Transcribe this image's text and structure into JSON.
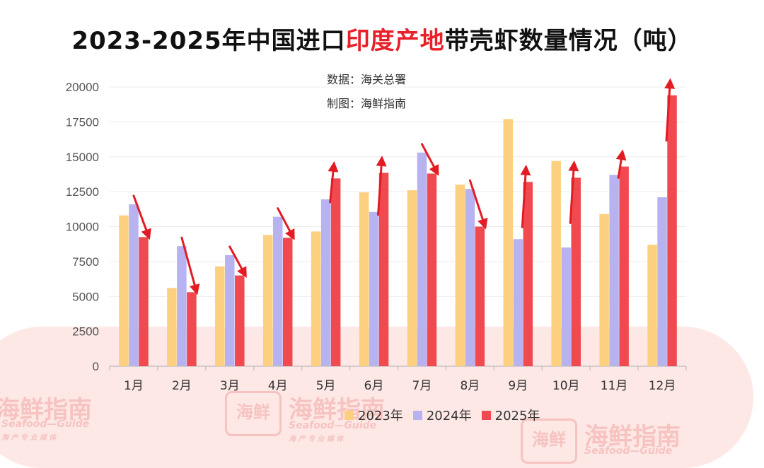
{
  "title": {
    "prefix": "2023-2025年中国进口",
    "highlight": "印度产地",
    "suffix": "带壳虾数量情况（吨）"
  },
  "source": {
    "data_line": "数据：海关总署",
    "chart_line": "制图：海鲜指南"
  },
  "watermark": {
    "brand_cn": "海鲜指南",
    "brand_en": "Seafood—Guide",
    "tagline": "海 产 专 业 媒 体",
    "logo_text": "海鲜"
  },
  "colors": {
    "s2023": "#fdd07f",
    "s2024": "#b8b2f1",
    "s2025": "#f04a50",
    "arrow": "#e31b23",
    "highlight": "#e8202a"
  },
  "chart_data": {
    "type": "bar",
    "title": "2023-2025年中国进口印度产地带壳虾数量情况（吨）",
    "xlabel": "",
    "ylabel": "",
    "ylim": [
      0,
      20000
    ],
    "yticks": [
      0,
      2500,
      5000,
      7500,
      10000,
      12500,
      15000,
      17500,
      20000
    ],
    "grid": true,
    "legend_position": "bottom",
    "categories": [
      "1月",
      "2月",
      "3月",
      "4月",
      "5月",
      "6月",
      "7月",
      "8月",
      "9月",
      "10月",
      "11月",
      "12月"
    ],
    "series": [
      {
        "name": "2023年",
        "values": [
          10800,
          5600,
          7150,
          9400,
          9650,
          12450,
          12600,
          13000,
          17700,
          14700,
          10900,
          8700
        ]
      },
      {
        "name": "2024年",
        "values": [
          11600,
          8600,
          7950,
          10700,
          11950,
          11050,
          15300,
          12700,
          9100,
          8500,
          13700,
          12100
        ]
      },
      {
        "name": "2025年",
        "values": [
          9250,
          5300,
          6500,
          9200,
          13450,
          13850,
          13800,
          10000,
          13200,
          13500,
          14300,
          19400
        ]
      }
    ],
    "annotations": "Red arrows mark the change from 2024 to 2025 for each month (up or down)."
  }
}
